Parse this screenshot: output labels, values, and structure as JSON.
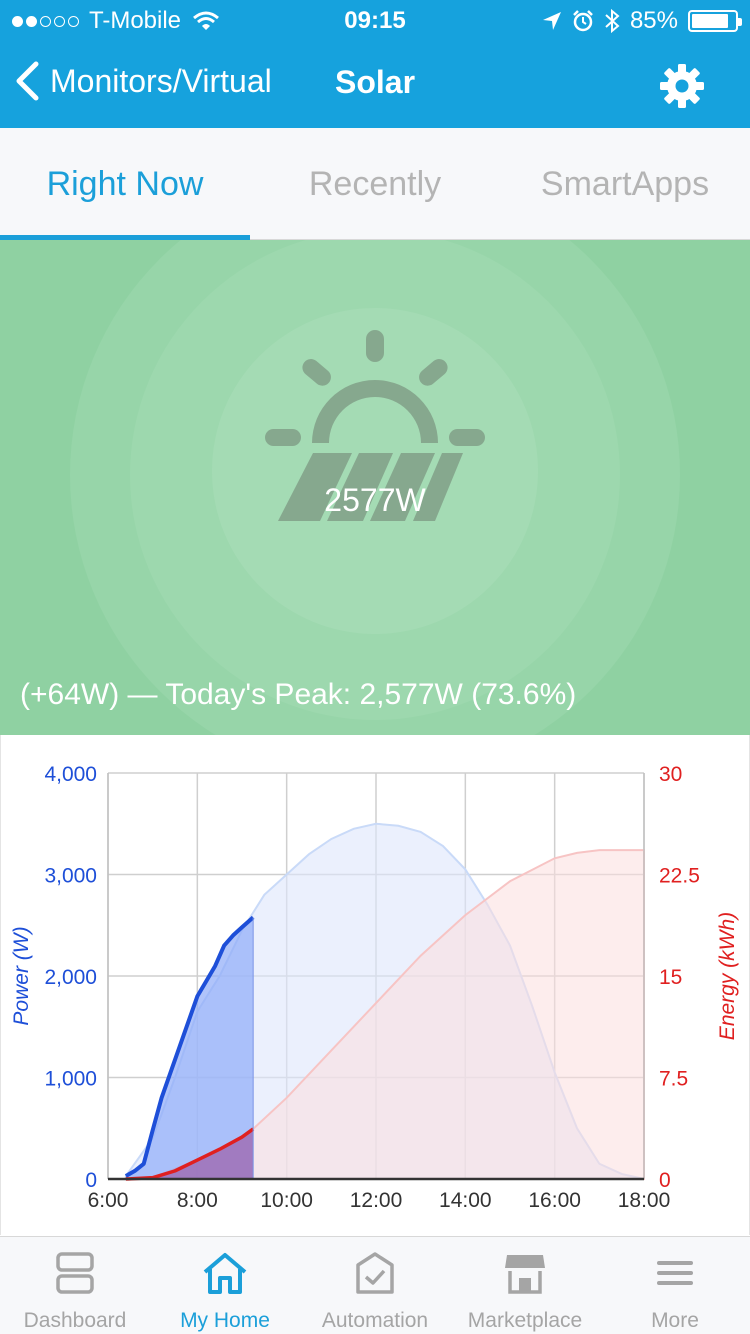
{
  "status_bar": {
    "carrier": "T-Mobile",
    "time": "09:15",
    "battery": "85%",
    "battery_level": 0.85,
    "signal_bars": 2
  },
  "nav": {
    "back_label": "Monitors/Virtual",
    "title": "Solar"
  },
  "tabs": [
    {
      "label": "Right Now",
      "active": true
    },
    {
      "label": "Recently",
      "active": false
    },
    {
      "label": "SmartApps",
      "active": false
    }
  ],
  "hero": {
    "value": "2577W",
    "peak_text": "(+64W) — Today's Peak: 2,577W (73.6%)",
    "color": "#8fd1a2"
  },
  "chart_data": {
    "type": "area",
    "x_ticks": [
      "6:00",
      "8:00",
      "10:00",
      "12:00",
      "14:00",
      "16:00",
      "18:00"
    ],
    "xlim": [
      6,
      18
    ],
    "y_left": {
      "label": "Power (W)",
      "ticks": [
        "0",
        "1,000",
        "2,000",
        "3,000",
        "4,000"
      ],
      "range": [
        0,
        4000
      ],
      "color": "#1e4fd8"
    },
    "y_right": {
      "label": "Energy (kWh)",
      "ticks": [
        "0",
        "7.5",
        "15",
        "22.5",
        "30"
      ],
      "range": [
        0,
        30
      ],
      "color": "#e02020"
    },
    "current_time": 9.25,
    "series": {
      "power_today": {
        "color": "#1e4fd8",
        "x": [
          6.4,
          6.6,
          6.8,
          7.0,
          7.2,
          7.4,
          7.6,
          7.8,
          8.0,
          8.2,
          8.4,
          8.6,
          8.8,
          9.0,
          9.25
        ],
        "y": [
          30,
          80,
          150,
          480,
          800,
          1050,
          1300,
          1550,
          1800,
          1950,
          2100,
          2300,
          2400,
          2480,
          2577
        ]
      },
      "power_forecast": {
        "color": "#c9daf8",
        "x": [
          6.4,
          7.0,
          7.5,
          8.0,
          8.5,
          9.0,
          9.5,
          10.0,
          10.5,
          11.0,
          11.5,
          12.0,
          12.5,
          13.0,
          13.5,
          14.0,
          14.5,
          15.0,
          15.5,
          16.0,
          16.5,
          17.0,
          17.5,
          18.0
        ],
        "y": [
          30,
          400,
          1000,
          1650,
          2000,
          2450,
          2800,
          3000,
          3200,
          3350,
          3450,
          3500,
          3480,
          3420,
          3280,
          3050,
          2700,
          2300,
          1700,
          1050,
          500,
          150,
          50,
          0
        ]
      },
      "energy_today": {
        "color": "#e02020",
        "x": [
          6.4,
          7.0,
          7.5,
          8.0,
          8.5,
          9.0,
          9.25
        ],
        "y": [
          0,
          0.1,
          0.6,
          1.4,
          2.2,
          3.1,
          3.7
        ]
      },
      "energy_forecast": {
        "color": "#f7c4c4",
        "x": [
          6.4,
          7.0,
          8.0,
          9.0,
          9.25,
          10.0,
          11.0,
          12.0,
          13.0,
          14.0,
          15.0,
          16.0,
          16.5,
          17.0,
          17.5,
          18.0
        ],
        "y": [
          0,
          0.1,
          1.4,
          3.1,
          3.7,
          6.0,
          9.5,
          13.0,
          16.5,
          19.5,
          22.0,
          23.7,
          24.1,
          24.3,
          24.3,
          24.3
        ]
      }
    }
  },
  "tabbar": [
    {
      "label": "Dashboard",
      "icon": "dashboard-icon",
      "active": false
    },
    {
      "label": "My Home",
      "icon": "home-icon",
      "active": true
    },
    {
      "label": "Automation",
      "icon": "automation-icon",
      "active": false
    },
    {
      "label": "Marketplace",
      "icon": "marketplace-icon",
      "active": false
    },
    {
      "label": "More",
      "icon": "menu-icon",
      "active": false
    }
  ]
}
